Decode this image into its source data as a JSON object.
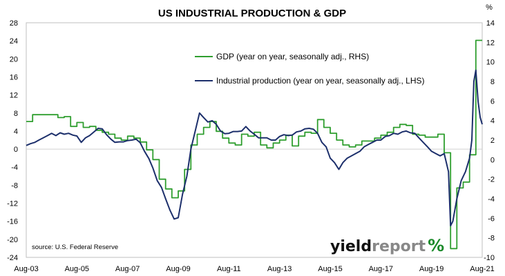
{
  "chart_data": {
    "type": "line",
    "title": "US INDUSTRIAL PRODUCTION & GDP",
    "right_axis_unit": "%",
    "source": "source: U.S. Federal Reserve",
    "logo": {
      "part1": "yield",
      "part2": "report",
      "part3": "%"
    },
    "x_tick_labels": [
      "Aug-03",
      "Aug-05",
      "Aug-07",
      "Aug-09",
      "Aug-11",
      "Aug-13",
      "Aug-15",
      "Aug-17",
      "Aug-19",
      "Aug-21"
    ],
    "x_range": [
      2003.58,
      2021.58
    ],
    "left_axis": {
      "ticks": [
        28,
        24,
        20,
        16,
        12,
        8,
        4,
        0,
        -4,
        -8,
        -12,
        -16,
        -20,
        -24
      ],
      "range": [
        -24,
        28
      ]
    },
    "right_axis": {
      "ticks": [
        14,
        12,
        10,
        8,
        6,
        4,
        2,
        0,
        -2,
        -4,
        -6,
        -8,
        -10
      ],
      "range": [
        -10,
        14
      ]
    },
    "colors": {
      "gdp": "#2e9e2e",
      "ip": "#1c2f6b"
    },
    "series": [
      {
        "name": "GDP (year on year, seasonally adj., RHS)",
        "axis": "right",
        "step": true,
        "points": [
          [
            2003.58,
            3.9
          ],
          [
            2003.83,
            4.6
          ],
          [
            2004.08,
            4.6
          ],
          [
            2004.33,
            4.6
          ],
          [
            2004.58,
            4.6
          ],
          [
            2004.83,
            4.3
          ],
          [
            2005.08,
            4.4
          ],
          [
            2005.33,
            3.4
          ],
          [
            2005.58,
            3.8
          ],
          [
            2005.83,
            3.3
          ],
          [
            2006.08,
            3.4
          ],
          [
            2006.33,
            3.0
          ],
          [
            2006.58,
            2.8
          ],
          [
            2006.83,
            2.6
          ],
          [
            2007.08,
            2.2
          ],
          [
            2007.33,
            2.0
          ],
          [
            2007.58,
            2.4
          ],
          [
            2007.83,
            2.2
          ],
          [
            2008.08,
            1.8
          ],
          [
            2008.33,
            1.0
          ],
          [
            2008.58,
            0.0
          ],
          [
            2008.83,
            -2.0
          ],
          [
            2009.08,
            -3.0
          ],
          [
            2009.33,
            -3.9
          ],
          [
            2009.58,
            -3.2
          ],
          [
            2009.83,
            -1.0
          ],
          [
            2010.08,
            1.5
          ],
          [
            2010.33,
            2.6
          ],
          [
            2010.58,
            3.3
          ],
          [
            2010.83,
            3.9
          ],
          [
            2011.08,
            2.9
          ],
          [
            2011.33,
            2.2
          ],
          [
            2011.58,
            1.7
          ],
          [
            2011.83,
            1.5
          ],
          [
            2012.08,
            2.6
          ],
          [
            2012.33,
            2.4
          ],
          [
            2012.58,
            2.8
          ],
          [
            2012.83,
            1.5
          ],
          [
            2013.08,
            1.2
          ],
          [
            2013.33,
            1.7
          ],
          [
            2013.58,
            2.0
          ],
          [
            2013.83,
            2.5
          ],
          [
            2014.08,
            1.4
          ],
          [
            2014.33,
            2.4
          ],
          [
            2014.58,
            2.8
          ],
          [
            2014.83,
            2.7
          ],
          [
            2015.08,
            4.1
          ],
          [
            2015.33,
            3.3
          ],
          [
            2015.58,
            2.7
          ],
          [
            2015.83,
            2.0
          ],
          [
            2016.08,
            1.5
          ],
          [
            2016.33,
            1.3
          ],
          [
            2016.58,
            1.5
          ],
          [
            2016.83,
            1.9
          ],
          [
            2017.08,
            1.9
          ],
          [
            2017.33,
            2.2
          ],
          [
            2017.58,
            2.5
          ],
          [
            2017.83,
            2.8
          ],
          [
            2018.08,
            3.3
          ],
          [
            2018.33,
            3.6
          ],
          [
            2018.58,
            3.5
          ],
          [
            2018.83,
            2.6
          ],
          [
            2019.08,
            2.5
          ],
          [
            2019.33,
            2.3
          ],
          [
            2019.58,
            2.3
          ],
          [
            2019.83,
            2.6
          ],
          [
            2020.08,
            0.7
          ],
          [
            2020.33,
            -9.1
          ],
          [
            2020.58,
            -2.9
          ],
          [
            2020.83,
            -2.3
          ],
          [
            2021.08,
            0.5
          ],
          [
            2021.33,
            12.2
          ],
          [
            2021.58,
            12.2
          ]
        ]
      },
      {
        "name": "Industrial production (year on year, seasonally adj., LHS)",
        "axis": "left",
        "step": false,
        "points": [
          [
            2003.58,
            0.8
          ],
          [
            2003.75,
            1.2
          ],
          [
            2003.92,
            1.5
          ],
          [
            2004.08,
            2.0
          ],
          [
            2004.25,
            2.5
          ],
          [
            2004.42,
            3.0
          ],
          [
            2004.58,
            3.5
          ],
          [
            2004.75,
            3.0
          ],
          [
            2004.92,
            3.6
          ],
          [
            2005.08,
            3.3
          ],
          [
            2005.25,
            3.5
          ],
          [
            2005.42,
            3.1
          ],
          [
            2005.58,
            2.9
          ],
          [
            2005.75,
            1.5
          ],
          [
            2005.92,
            2.5
          ],
          [
            2006.08,
            3.0
          ],
          [
            2006.25,
            3.8
          ],
          [
            2006.42,
            4.6
          ],
          [
            2006.58,
            4.5
          ],
          [
            2006.75,
            3.2
          ],
          [
            2006.92,
            2.2
          ],
          [
            2007.08,
            1.5
          ],
          [
            2007.25,
            1.6
          ],
          [
            2007.42,
            1.6
          ],
          [
            2007.58,
            1.9
          ],
          [
            2007.75,
            2.0
          ],
          [
            2007.92,
            2.2
          ],
          [
            2008.08,
            1.4
          ],
          [
            2008.25,
            -0.5
          ],
          [
            2008.42,
            -2.1
          ],
          [
            2008.58,
            -4.2
          ],
          [
            2008.75,
            -7.0
          ],
          [
            2008.92,
            -8.5
          ],
          [
            2009.08,
            -11.0
          ],
          [
            2009.25,
            -13.5
          ],
          [
            2009.42,
            -15.5
          ],
          [
            2009.58,
            -15.2
          ],
          [
            2009.75,
            -10.0
          ],
          [
            2009.92,
            -6.0
          ],
          [
            2010.08,
            0.0
          ],
          [
            2010.25,
            4.0
          ],
          [
            2010.42,
            8.0
          ],
          [
            2010.58,
            7.0
          ],
          [
            2010.75,
            6.0
          ],
          [
            2010.92,
            6.3
          ],
          [
            2011.08,
            5.5
          ],
          [
            2011.25,
            4.0
          ],
          [
            2011.42,
            3.4
          ],
          [
            2011.58,
            3.5
          ],
          [
            2011.75,
            3.9
          ],
          [
            2011.92,
            3.9
          ],
          [
            2012.08,
            4.0
          ],
          [
            2012.25,
            5.0
          ],
          [
            2012.42,
            4.0
          ],
          [
            2012.58,
            3.3
          ],
          [
            2012.75,
            2.5
          ],
          [
            2012.92,
            2.5
          ],
          [
            2013.08,
            2.5
          ],
          [
            2013.25,
            2.0
          ],
          [
            2013.42,
            2.0
          ],
          [
            2013.58,
            2.8
          ],
          [
            2013.75,
            3.2
          ],
          [
            2013.92,
            3.0
          ],
          [
            2014.08,
            3.1
          ],
          [
            2014.25,
            3.8
          ],
          [
            2014.42,
            4.0
          ],
          [
            2014.58,
            4.5
          ],
          [
            2014.75,
            4.6
          ],
          [
            2014.92,
            4.4
          ],
          [
            2015.08,
            3.5
          ],
          [
            2015.25,
            1.5
          ],
          [
            2015.42,
            0.5
          ],
          [
            2015.58,
            -2.0
          ],
          [
            2015.75,
            -3.0
          ],
          [
            2015.92,
            -4.5
          ],
          [
            2016.08,
            -3.0
          ],
          [
            2016.25,
            -2.0
          ],
          [
            2016.42,
            -1.5
          ],
          [
            2016.58,
            -1.0
          ],
          [
            2016.75,
            -0.5
          ],
          [
            2016.92,
            0.5
          ],
          [
            2017.08,
            1.0
          ],
          [
            2017.25,
            1.5
          ],
          [
            2017.42,
            2.0
          ],
          [
            2017.58,
            2.0
          ],
          [
            2017.75,
            2.8
          ],
          [
            2017.92,
            3.0
          ],
          [
            2018.08,
            3.5
          ],
          [
            2018.25,
            3.3
          ],
          [
            2018.42,
            3.8
          ],
          [
            2018.58,
            4.0
          ],
          [
            2018.75,
            3.6
          ],
          [
            2018.92,
            3.5
          ],
          [
            2019.08,
            2.5
          ],
          [
            2019.25,
            1.5
          ],
          [
            2019.42,
            0.5
          ],
          [
            2019.58,
            -0.5
          ],
          [
            2019.75,
            -1.0
          ],
          [
            2019.92,
            -1.5
          ],
          [
            2020.08,
            -1.0
          ],
          [
            2020.25,
            -5.0
          ],
          [
            2020.33,
            -17.0
          ],
          [
            2020.42,
            -16.0
          ],
          [
            2020.58,
            -11.0
          ],
          [
            2020.75,
            -7.0
          ],
          [
            2020.92,
            -5.0
          ],
          [
            2021.08,
            -2.0
          ],
          [
            2021.17,
            2.0
          ],
          [
            2021.25,
            15.0
          ],
          [
            2021.33,
            17.5
          ],
          [
            2021.42,
            10.5
          ],
          [
            2021.5,
            7.0
          ],
          [
            2021.58,
            5.5
          ]
        ]
      }
    ]
  }
}
